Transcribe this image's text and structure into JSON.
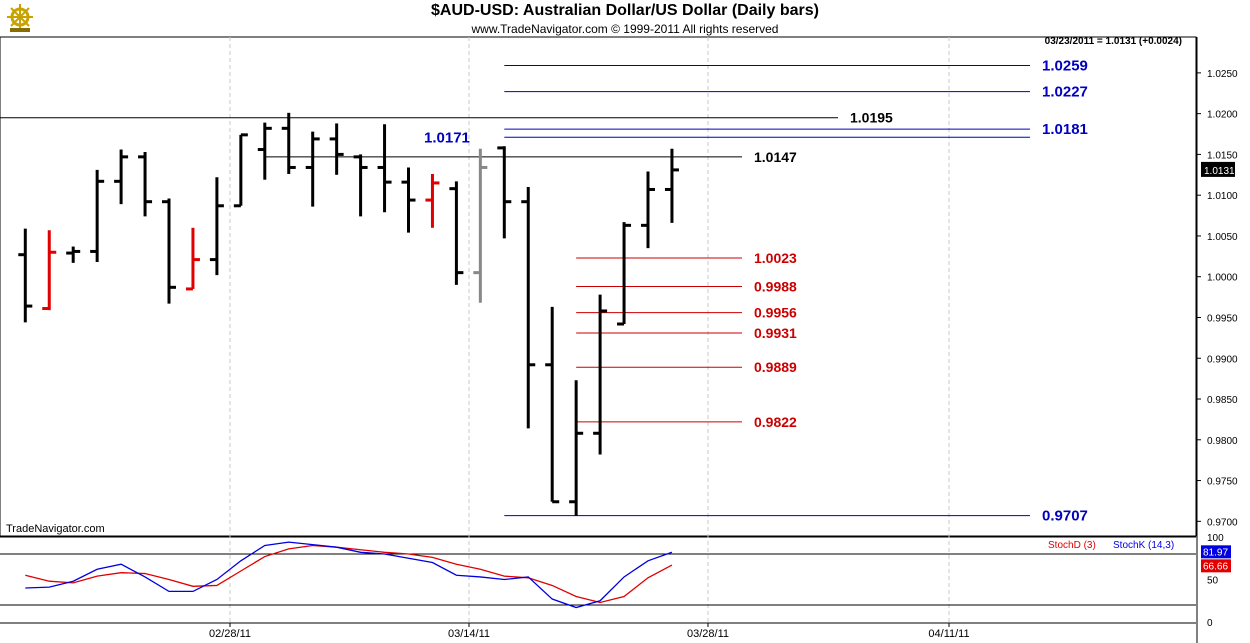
{
  "header": {
    "title": "$AUD-USD:  Australian Dollar/US Dollar  (Daily bars)",
    "copyright": "www.TradeNavigator.com © 1999-2011 All rights reserved",
    "quote": "03/23/2011 = 1.0131 (+0.0024)",
    "watermark": "TradeNavigator.com",
    "logo_icon": "ship-wheel-icon"
  },
  "colors": {
    "bar_up": "#000000",
    "bar_down_red": "#e00000",
    "bar_gray": "#888888",
    "level_blue": "#0000c0",
    "level_red": "#cc0000",
    "level_black": "#000000",
    "stoch_d": "#e00000",
    "stoch_k": "#0000e0",
    "price_tag_bg": "#000000",
    "stoch_k_tag": "#0000e0",
    "stoch_d_tag": "#e00000"
  },
  "chart_data": {
    "type": "ohlc",
    "ylim": [
      0.9682,
      1.0294
    ],
    "y_ticks": [
      "1.0250",
      "1.0200",
      "1.0150",
      "1.0100",
      "1.0050",
      "1.0000",
      "0.9950",
      "0.9900",
      "0.9850",
      "0.9800",
      "0.9750",
      "0.9700"
    ],
    "x_ticks": [
      "02/28/11",
      "03/14/11",
      "03/28/11",
      "04/11/11"
    ],
    "bars": [
      {
        "o": 1.0027,
        "h": 1.0059,
        "l": 0.9944,
        "c": 0.9964,
        "color": "black"
      },
      {
        "o": 0.9961,
        "h": 1.0057,
        "l": 0.9959,
        "c": 1.003,
        "color": "red"
      },
      {
        "o": 1.0029,
        "h": 1.0037,
        "l": 1.0017,
        "c": 1.0031,
        "color": "black"
      },
      {
        "o": 1.0031,
        "h": 1.0131,
        "l": 1.0018,
        "c": 1.0117,
        "color": "black"
      },
      {
        "o": 1.0117,
        "h": 1.0156,
        "l": 1.0089,
        "c": 1.0147,
        "color": "black"
      },
      {
        "o": 1.0147,
        "h": 1.0153,
        "l": 1.0074,
        "c": 1.0092,
        "color": "black"
      },
      {
        "o": 1.0092,
        "h": 1.0096,
        "l": 0.9967,
        "c": 0.9987,
        "color": "black"
      },
      {
        "o": 0.9985,
        "h": 1.006,
        "l": 0.9985,
        "c": 1.0021,
        "color": "red"
      },
      {
        "o": 1.0021,
        "h": 1.0122,
        "l": 1.0002,
        "c": 1.0087,
        "color": "black"
      },
      {
        "o": 1.0087,
        "h": 1.0174,
        "l": 1.0087,
        "c": 1.0174,
        "color": "black"
      },
      {
        "o": 1.0156,
        "h": 1.0189,
        "l": 1.0119,
        "c": 1.0182,
        "color": "black"
      },
      {
        "o": 1.0182,
        "h": 1.0201,
        "l": 1.0126,
        "c": 1.0134,
        "color": "black"
      },
      {
        "o": 1.0134,
        "h": 1.0178,
        "l": 1.0086,
        "c": 1.0169,
        "color": "black"
      },
      {
        "o": 1.0169,
        "h": 1.0188,
        "l": 1.0125,
        "c": 1.015,
        "color": "black"
      },
      {
        "o": 1.0147,
        "h": 1.015,
        "l": 1.0074,
        "c": 1.0134,
        "color": "black"
      },
      {
        "o": 1.0134,
        "h": 1.0187,
        "l": 1.0079,
        "c": 1.0116,
        "color": "black"
      },
      {
        "o": 1.0116,
        "h": 1.0134,
        "l": 1.0054,
        "c": 1.0094,
        "color": "black"
      },
      {
        "o": 1.0094,
        "h": 1.0126,
        "l": 1.006,
        "c": 1.0115,
        "color": "red"
      },
      {
        "o": 1.0108,
        "h": 1.0117,
        "l": 0.999,
        "c": 1.0005,
        "color": "black"
      },
      {
        "o": 1.0005,
        "h": 1.0157,
        "l": 0.9968,
        "c": 1.0134,
        "color": "gray"
      },
      {
        "o": 1.0158,
        "h": 1.016,
        "l": 1.0047,
        "c": 1.0092,
        "color": "black"
      },
      {
        "o": 1.0092,
        "h": 1.011,
        "l": 0.9814,
        "c": 0.9892,
        "color": "black"
      },
      {
        "o": 0.9892,
        "h": 0.9963,
        "l": 0.9724,
        "c": 0.9724,
        "color": "black"
      },
      {
        "o": 0.9724,
        "h": 0.9873,
        "l": 0.9707,
        "c": 0.9808,
        "color": "black"
      },
      {
        "o": 0.9808,
        "h": 0.9978,
        "l": 0.9782,
        "c": 0.9958,
        "color": "black"
      },
      {
        "o": 0.9942,
        "h": 1.0067,
        "l": 0.9942,
        "c": 1.0063,
        "color": "black"
      },
      {
        "o": 1.0063,
        "h": 1.0129,
        "l": 1.0035,
        "c": 1.0107,
        "color": "black"
      },
      {
        "o": 1.0107,
        "h": 1.0157,
        "l": 1.0066,
        "c": 1.0131,
        "color": "black"
      }
    ],
    "levels": [
      {
        "value": 1.0259,
        "label": "1.0259",
        "color": "blue",
        "start_bar": 20,
        "end": "right"
      },
      {
        "value": 1.0227,
        "label": "1.0227",
        "color": "blue",
        "start_bar": 20,
        "end": "right"
      },
      {
        "value": 1.0195,
        "label": "1.0195",
        "color": "black",
        "start_bar": -1,
        "end": "mid"
      },
      {
        "value": 1.0181,
        "label": "1.0181",
        "color": "blue",
        "start_bar": 20,
        "end": "right"
      },
      {
        "value": 1.0171,
        "label": "1.0171",
        "color": "blue",
        "start_bar": 20,
        "end": "right",
        "label_left": true
      },
      {
        "value": 1.0147,
        "label": "1.0147",
        "color": "black",
        "start_bar": 10,
        "end": "short"
      },
      {
        "value": 1.0023,
        "label": "1.0023",
        "color": "red",
        "start_bar": 23,
        "end": "short"
      },
      {
        "value": 0.9988,
        "label": "0.9988",
        "color": "red",
        "start_bar": 23,
        "end": "short"
      },
      {
        "value": 0.9956,
        "label": "0.9956",
        "color": "red",
        "start_bar": 23,
        "end": "short"
      },
      {
        "value": 0.9931,
        "label": "0.9931",
        "color": "red",
        "start_bar": 23,
        "end": "short"
      },
      {
        "value": 0.9889,
        "label": "0.9889",
        "color": "red",
        "start_bar": 23,
        "end": "short"
      },
      {
        "value": 0.9822,
        "label": "0.9822",
        "color": "red",
        "start_bar": 23,
        "end": "short"
      },
      {
        "value": 0.9707,
        "label": "0.9707",
        "color": "blue",
        "start_bar": 20,
        "end": "right"
      }
    ],
    "last_price_tag": "1.0131",
    "stochastic": {
      "ylim": [
        0,
        100
      ],
      "y_ticks": [
        "100",
        "50",
        "0"
      ],
      "ref_lines": [
        80,
        20
      ],
      "stoch_d_label": "StochD (3)",
      "stoch_k_label": "StochK (14,3)",
      "stoch_k_value": "81.97",
      "stoch_d_value": "66.66",
      "stoch_k_values": [
        40,
        41,
        48,
        62,
        68,
        53,
        36,
        36,
        50,
        72,
        90,
        94,
        91,
        88,
        82,
        80,
        75,
        70,
        55,
        53,
        50,
        53,
        27,
        17,
        25,
        53,
        72,
        82
      ],
      "stoch_d_values": [
        55,
        48,
        46,
        54,
        58,
        57,
        50,
        42,
        43,
        60,
        77,
        86,
        90,
        88,
        85,
        82,
        80,
        76,
        68,
        62,
        54,
        52,
        43,
        30,
        23,
        30,
        52,
        67
      ]
    }
  }
}
